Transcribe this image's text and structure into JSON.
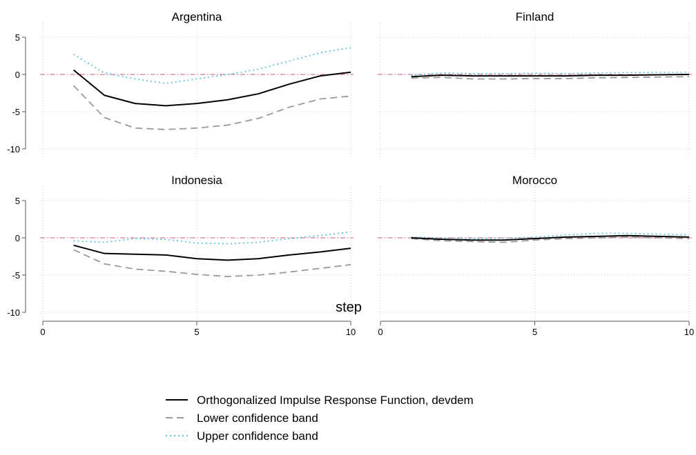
{
  "chart_data": {
    "type": "line",
    "xlabel": "step",
    "xlim": [
      0,
      10
    ],
    "ylim": [
      -10,
      5
    ],
    "x_ticks": [
      "0",
      "5",
      "10"
    ],
    "y_ticks": [
      "-10",
      "-5",
      "0",
      "5"
    ],
    "reference_line_y": 0,
    "grid": true,
    "legend_position": "bottom",
    "legend": [
      {
        "label": "Orthogonalized Impulse Response Function, devdem",
        "color": "#000000",
        "dash": "solid"
      },
      {
        "label": "Lower confidence band",
        "color": "#999999",
        "dash": "dashed"
      },
      {
        "label": "Upper confidence band",
        "color": "#5bc0de",
        "dash": "dotted"
      }
    ],
    "panels": [
      {
        "title": "Argentina",
        "x": [
          1,
          2,
          3,
          4,
          5,
          6,
          7,
          8,
          9,
          10
        ],
        "series": [
          {
            "name": "Orthogonalized Impulse Response Function, devdem",
            "values": [
              0.6,
              -2.8,
              -3.9,
              -4.2,
              -3.9,
              -3.4,
              -2.6,
              -1.3,
              -0.2,
              0.3
            ]
          },
          {
            "name": "Lower confidence band",
            "values": [
              -1.5,
              -5.8,
              -7.2,
              -7.4,
              -7.2,
              -6.8,
              -5.9,
              -4.4,
              -3.3,
              -2.9
            ]
          },
          {
            "name": "Upper confidence band",
            "values": [
              2.7,
              0.2,
              -0.6,
              -1.2,
              -0.6,
              0.0,
              0.7,
              1.8,
              2.9,
              3.6
            ]
          }
        ]
      },
      {
        "title": "Finland",
        "x": [
          1,
          2,
          3,
          4,
          5,
          6,
          7,
          8,
          9,
          10
        ],
        "series": [
          {
            "name": "Orthogonalized Impulse Response Function, devdem",
            "values": [
              -0.3,
              -0.1,
              -0.2,
              -0.2,
              -0.2,
              -0.2,
              -0.1,
              -0.1,
              -0.05,
              0.0
            ]
          },
          {
            "name": "Lower confidence band",
            "values": [
              -0.5,
              -0.4,
              -0.6,
              -0.6,
              -0.55,
              -0.55,
              -0.45,
              -0.4,
              -0.35,
              -0.3
            ]
          },
          {
            "name": "Upper confidence band",
            "values": [
              -0.1,
              0.2,
              0.1,
              0.1,
              0.15,
              0.1,
              0.2,
              0.25,
              0.3,
              0.3
            ]
          }
        ]
      },
      {
        "title": "Indonesia",
        "x": [
          1,
          2,
          3,
          4,
          5,
          6,
          7,
          8,
          9,
          10
        ],
        "series": [
          {
            "name": "Orthogonalized Impulse Response Function, devdem",
            "values": [
              -1.0,
              -2.1,
              -2.2,
              -2.3,
              -2.8,
              -3.0,
              -2.8,
              -2.3,
              -1.9,
              -1.4
            ]
          },
          {
            "name": "Lower confidence band",
            "values": [
              -1.6,
              -3.5,
              -4.2,
              -4.5,
              -4.9,
              -5.2,
              -5.0,
              -4.6,
              -4.1,
              -3.6
            ]
          },
          {
            "name": "Upper confidence band",
            "values": [
              -0.4,
              -0.6,
              -0.1,
              -0.2,
              -0.7,
              -0.8,
              -0.6,
              -0.1,
              0.3,
              0.8
            ]
          }
        ]
      },
      {
        "title": "Morocco",
        "x": [
          1,
          2,
          3,
          4,
          5,
          6,
          7,
          8,
          9,
          10
        ],
        "series": [
          {
            "name": "Orthogonalized Impulse Response Function, devdem",
            "values": [
              0.0,
              -0.2,
              -0.3,
              -0.3,
              -0.1,
              0.1,
              0.2,
              0.3,
              0.2,
              0.1
            ]
          },
          {
            "name": "Lower confidence band",
            "values": [
              -0.1,
              -0.4,
              -0.5,
              -0.6,
              -0.3,
              -0.1,
              0.0,
              0.1,
              0.0,
              -0.1
            ]
          },
          {
            "name": "Upper confidence band",
            "values": [
              0.1,
              0.0,
              -0.1,
              -0.05,
              0.1,
              0.4,
              0.6,
              0.6,
              0.5,
              0.4
            ]
          }
        ]
      }
    ]
  }
}
